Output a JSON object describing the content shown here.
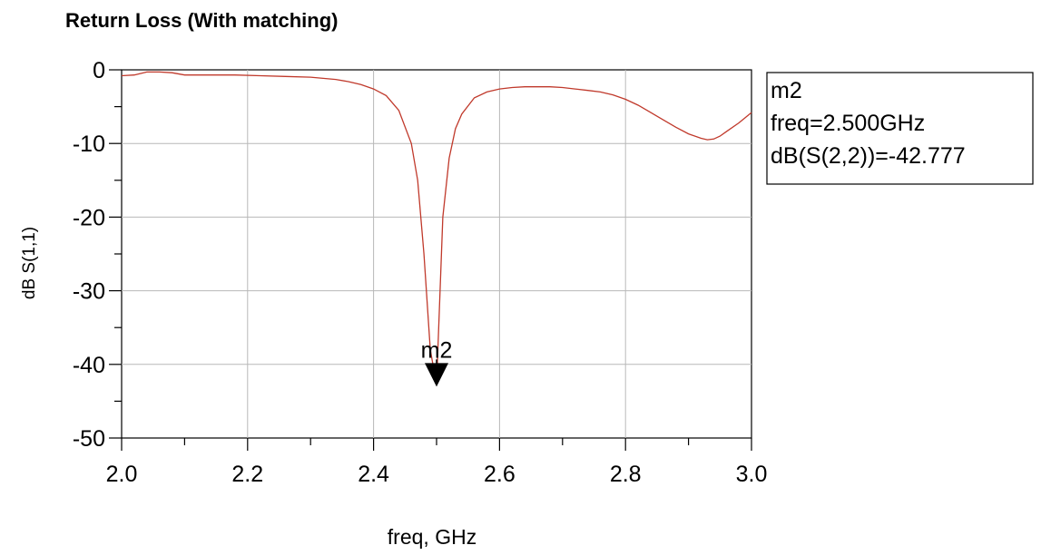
{
  "chart_data": {
    "type": "line",
    "title": "Return Loss (With matching)",
    "xlabel": "freq, GHz",
    "ylabel": "dB S(1,1)",
    "xlim": [
      2.0,
      3.0
    ],
    "ylim": [
      -50,
      0
    ],
    "xticks": [
      "2.0",
      "2.2",
      "2.4",
      "2.6",
      "2.8",
      "3.0"
    ],
    "yticks": [
      "0",
      "-10",
      "-20",
      "-30",
      "-40",
      "-50"
    ],
    "grid": true,
    "series": [
      {
        "x": [
          2.0,
          2.02,
          2.04,
          2.06,
          2.08,
          2.1,
          2.14,
          2.18,
          2.22,
          2.26,
          2.3,
          2.34,
          2.36,
          2.38,
          2.4,
          2.42,
          2.44,
          2.46,
          2.47,
          2.48,
          2.49,
          2.5,
          2.51,
          2.52,
          2.53,
          2.54,
          2.56,
          2.58,
          2.6,
          2.62,
          2.64,
          2.66,
          2.68,
          2.7,
          2.72,
          2.74,
          2.76,
          2.78,
          2.8,
          2.82,
          2.84,
          2.86,
          2.88,
          2.9,
          2.92,
          2.93,
          2.94,
          2.95,
          2.96,
          2.98,
          3.0
        ],
        "y": [
          -0.8,
          -0.7,
          -0.3,
          -0.3,
          -0.4,
          -0.7,
          -0.7,
          -0.7,
          -0.8,
          -0.9,
          -1.0,
          -1.3,
          -1.6,
          -2.0,
          -2.6,
          -3.5,
          -5.5,
          -10.0,
          -15.0,
          -25.0,
          -38.0,
          -42.8,
          -20.0,
          -12.0,
          -8.0,
          -6.0,
          -3.8,
          -3.0,
          -2.6,
          -2.4,
          -2.3,
          -2.3,
          -2.3,
          -2.4,
          -2.6,
          -2.8,
          -3.0,
          -3.4,
          -4.0,
          -4.8,
          -5.8,
          -6.8,
          -7.8,
          -8.7,
          -9.3,
          -9.5,
          -9.4,
          -9.0,
          -8.4,
          -7.2,
          -5.8
        ],
        "color": "#c0392b"
      }
    ],
    "markers": [
      {
        "name": "m2",
        "x": 2.5,
        "y": -42.777,
        "lines": [
          "m2",
          "freq=2.500GHz",
          "dB(S(2,2))=-42.777"
        ]
      }
    ]
  }
}
